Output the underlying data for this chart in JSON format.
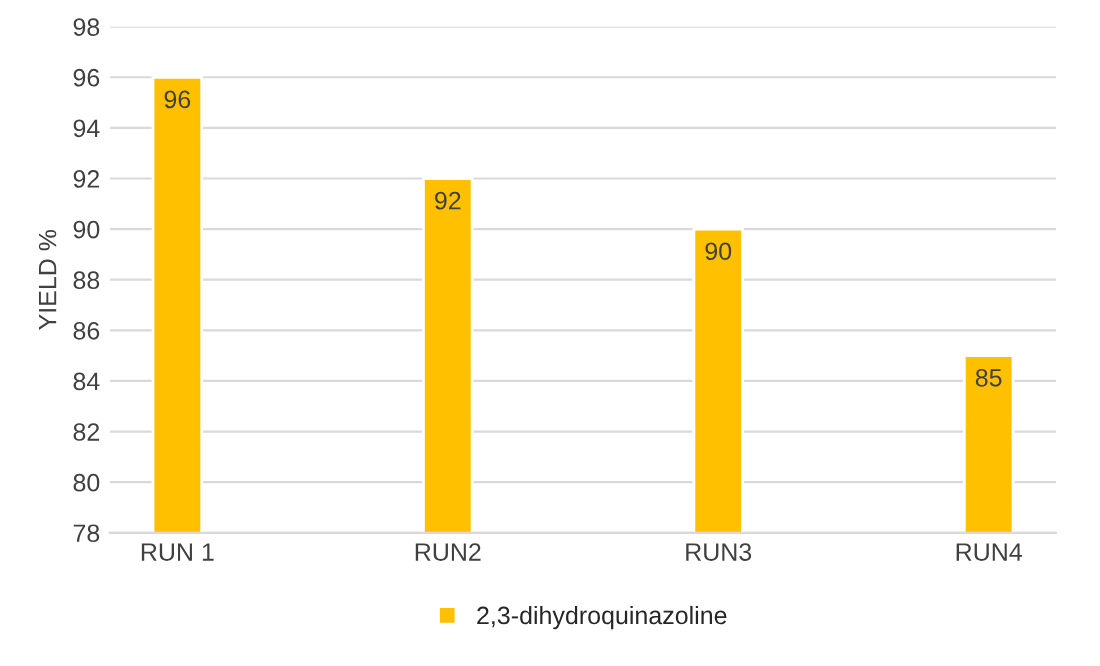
{
  "chart_data": {
    "type": "bar",
    "ylabel": "YIELD %",
    "categories": [
      "RUN 1",
      "RUN2",
      "RUN3",
      "RUN4"
    ],
    "series": [
      {
        "name": "2,3-dihydroquinazoline",
        "color": "#ffc000",
        "values": [
          96,
          92,
          90,
          85
        ]
      }
    ],
    "ylim": [
      78,
      98
    ],
    "yticks": [
      78,
      80,
      82,
      84,
      86,
      88,
      90,
      92,
      94,
      96,
      98
    ],
    "grid": "y",
    "legend": "bottom",
    "data_labels": true
  }
}
